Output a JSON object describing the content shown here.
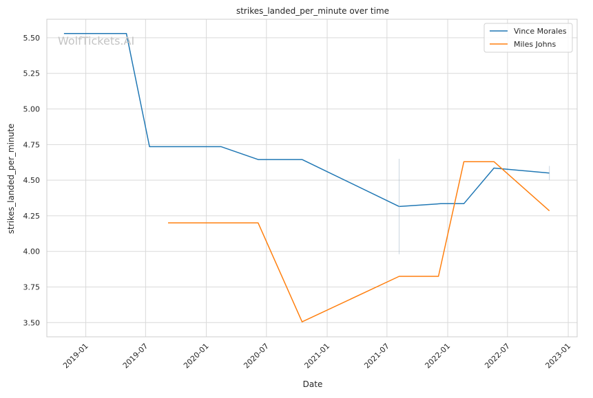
{
  "chart_data": {
    "type": "line",
    "title": "strikes_landed_per_minute over time",
    "xlabel": "Date",
    "ylabel": "strikes_landed_per_minute",
    "watermark": "WolfTickets.AI",
    "x_ticks": [
      "2019-01",
      "2019-07",
      "2020-01",
      "2020-07",
      "2021-01",
      "2021-07",
      "2022-01",
      "2022-07",
      "2023-01"
    ],
    "y_ticks": [
      "3.50",
      "3.75",
      "4.00",
      "4.25",
      "4.50",
      "4.75",
      "5.00",
      "5.25",
      "5.50"
    ],
    "xlim": [
      "2018-09-05",
      "2023-01-28"
    ],
    "ylim": [
      3.4,
      5.63
    ],
    "grid": true,
    "legend_position": "top-right",
    "series": [
      {
        "name": "Vince Morales",
        "color": "#1f77b4",
        "points": [
          {
            "x": "2018-10-27",
            "y": 5.53
          },
          {
            "x": "2019-05-04",
            "y": 5.53
          },
          {
            "x": "2019-07-13",
            "y": 4.735
          },
          {
            "x": "2020-02-15",
            "y": 4.735
          },
          {
            "x": "2020-06-06",
            "y": 4.645
          },
          {
            "x": "2020-10-17",
            "y": 4.645
          },
          {
            "x": "2021-08-07",
            "y": 4.315
          },
          {
            "x": "2021-12-11",
            "y": 4.335
          },
          {
            "x": "2022-02-19",
            "y": 4.335
          },
          {
            "x": "2022-05-21",
            "y": 4.585
          },
          {
            "x": "2022-11-05",
            "y": 4.55
          }
        ]
      },
      {
        "name": "Miles Johns",
        "color": "#ff7f0e",
        "points": [
          {
            "x": "2019-09-07",
            "y": 4.2
          },
          {
            "x": "2020-06-06",
            "y": 4.2
          },
          {
            "x": "2020-10-17",
            "y": 3.505
          },
          {
            "x": "2021-08-07",
            "y": 3.825
          },
          {
            "x": "2021-12-04",
            "y": 3.825
          },
          {
            "x": "2022-02-19",
            "y": 4.63
          },
          {
            "x": "2022-05-21",
            "y": 4.63
          },
          {
            "x": "2022-11-05",
            "y": 4.285
          }
        ]
      }
    ]
  }
}
